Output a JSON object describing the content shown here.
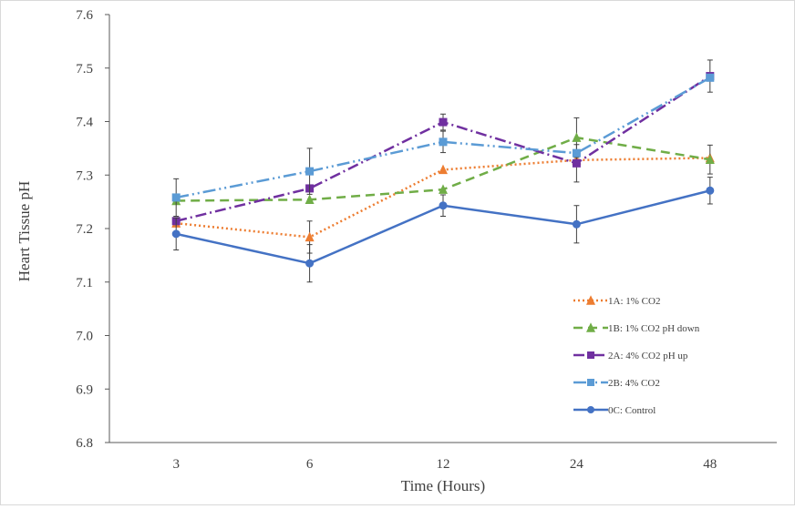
{
  "chart_data": {
    "type": "line",
    "title": "",
    "xlabel": "Time (Hours)",
    "ylabel": "Heart Tissue pH",
    "categories": [
      "3",
      "6",
      "12",
      "24",
      "48"
    ],
    "ylim": [
      6.8,
      7.6
    ],
    "yticks": [
      "6.8",
      "6.9",
      "7.0",
      "7.1",
      "7.2",
      "7.3",
      "7.4",
      "7.5",
      "7.6"
    ],
    "grid": false,
    "legend_position": "right",
    "series": [
      {
        "name": "1A: 1% CO2",
        "values": [
          7.21,
          7.184,
          7.31,
          7.328,
          7.332
        ],
        "errors": [
          0.0,
          0.03,
          0.0,
          0.0,
          0.0
        ],
        "color": "#ED7D31",
        "marker": "triangle",
        "dash": "2,3"
      },
      {
        "name": "1B: 1% CO2 pH down",
        "values": [
          7.252,
          7.254,
          7.273,
          7.37,
          7.329
        ],
        "errors": [
          0.0,
          0.0,
          0.0,
          0.037,
          0.027
        ],
        "color": "#70AD47",
        "marker": "triangle",
        "dash": "10,6"
      },
      {
        "name": "2A: 4% CO2 pH up",
        "values": [
          7.214,
          7.275,
          7.399,
          7.322,
          7.485
        ],
        "errors": [
          0.0,
          0.0,
          0.015,
          0.035,
          0.03
        ],
        "color": "#7030A0",
        "marker": "square",
        "dash": "12,4,2,4"
      },
      {
        "name": "2B: 4% CO2",
        "values": [
          7.258,
          7.307,
          7.362,
          7.341,
          7.482
        ],
        "errors": [
          0.035,
          0.043,
          0.02,
          0.0,
          0.0
        ],
        "color": "#5B9BD5",
        "marker": "square",
        "dash": "14,4,2,4,2,4"
      },
      {
        "name": "0C: Control",
        "values": [
          7.19,
          7.135,
          7.243,
          7.208,
          7.271
        ],
        "errors": [
          0.03,
          0.035,
          0.02,
          0.035,
          0.025
        ],
        "color": "#4472C4",
        "marker": "circle",
        "dash": ""
      }
    ]
  }
}
